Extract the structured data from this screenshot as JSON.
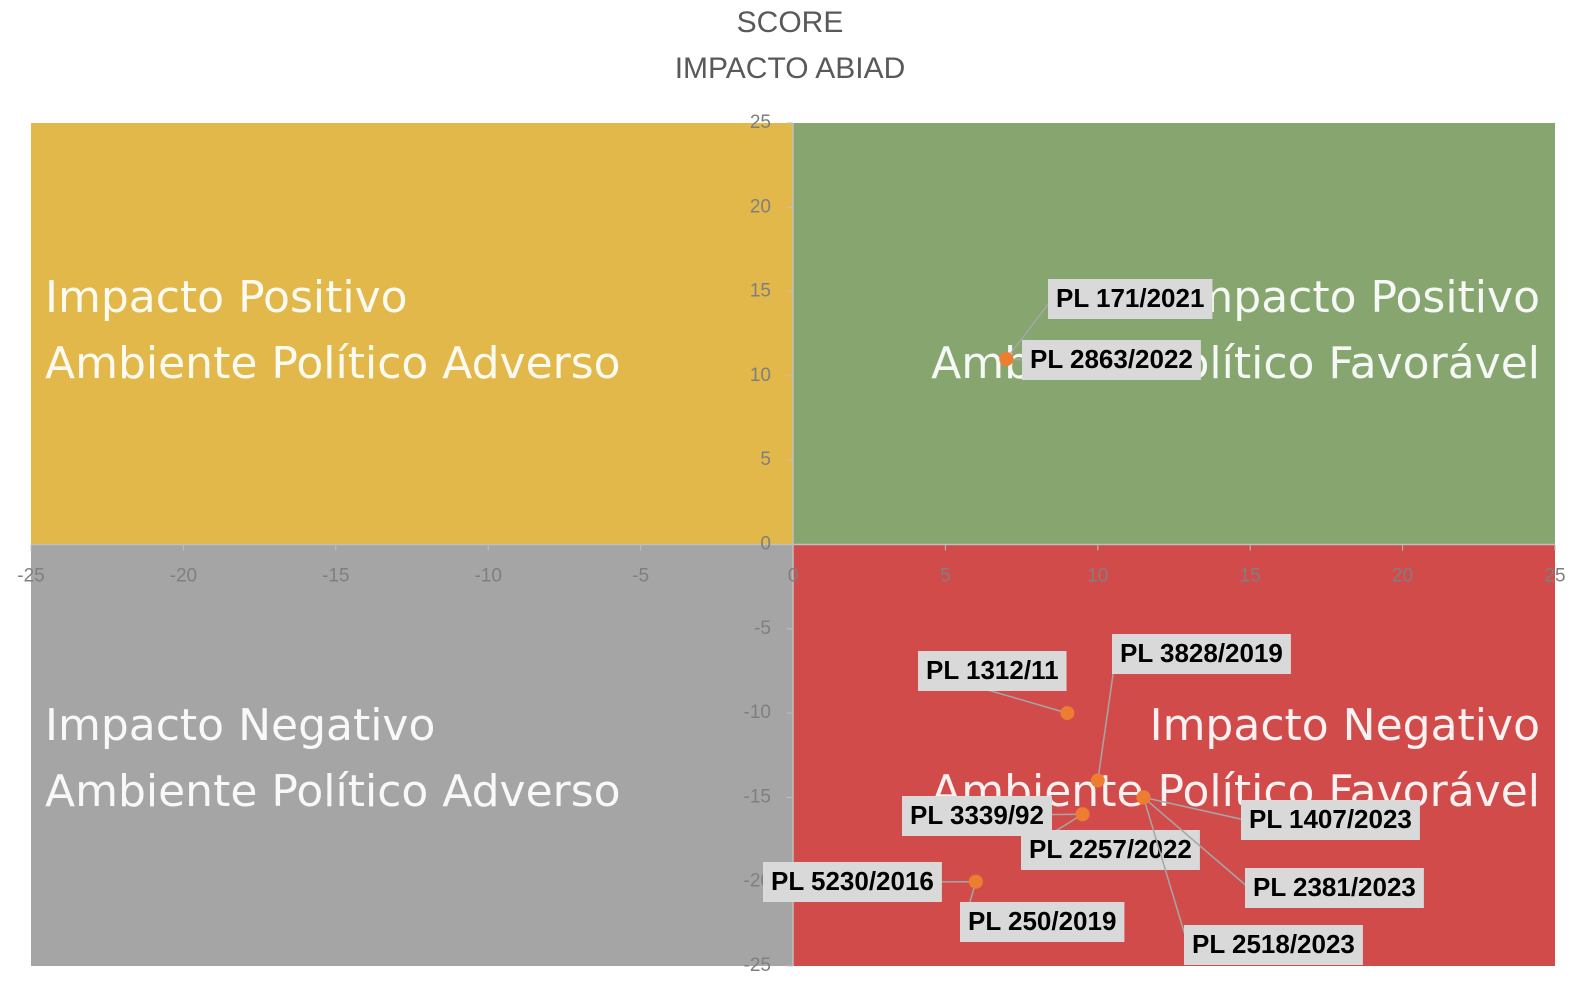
{
  "chart_data": {
    "type": "scatter",
    "title": "SCORE",
    "subtitle": "IMPACTO ABIAD",
    "xlim": [
      -25,
      25
    ],
    "ylim": [
      -25,
      25
    ],
    "xticks": [
      -25,
      -20,
      -15,
      -10,
      -5,
      0,
      5,
      10,
      15,
      20,
      25
    ],
    "yticks": [
      -25,
      -20,
      -15,
      -10,
      -5,
      0,
      5,
      10,
      15,
      20,
      25
    ],
    "color": "#ed7d31",
    "quadrants": [
      {
        "line1": "Impacto Positivo",
        "line2": "Ambiente Político Adverso",
        "color": "#e3b84b"
      },
      {
        "line1": "Impacto Positivo",
        "line2": "Ambiente Político Favorável",
        "color": "#86a56f"
      },
      {
        "line1": "Impacto Negativo",
        "line2": "Ambiente Político Adverso",
        "color": "#a5a5a5"
      },
      {
        "line1": "Impacto Negativo",
        "line2": "Ambiente Político Favorável",
        "color": "#d24b4b"
      }
    ],
    "points": [
      {
        "label": "PL 171/2021",
        "x": 7,
        "y": 11
      },
      {
        "label": "PL 2863/2022",
        "x": 7,
        "y": 11
      },
      {
        "label": "PL 1312/11",
        "x": 9,
        "y": -10
      },
      {
        "label": "PL 3828/2019",
        "x": 10,
        "y": -14
      },
      {
        "label": "PL 1407/2023",
        "x": 11.5,
        "y": -15
      },
      {
        "label": "PL 3339/92",
        "x": 9.5,
        "y": -16
      },
      {
        "label": "PL 2257/2022",
        "x": 9.5,
        "y": -16
      },
      {
        "label": "PL 5230/2016",
        "x": 6,
        "y": -20
      },
      {
        "label": "PL 250/2019",
        "x": 6,
        "y": -20
      },
      {
        "label": "PL 2381/2023",
        "x": 11.5,
        "y": -15
      },
      {
        "label": "PL 2518/2023",
        "x": 11.5,
        "y": -15
      }
    ]
  }
}
